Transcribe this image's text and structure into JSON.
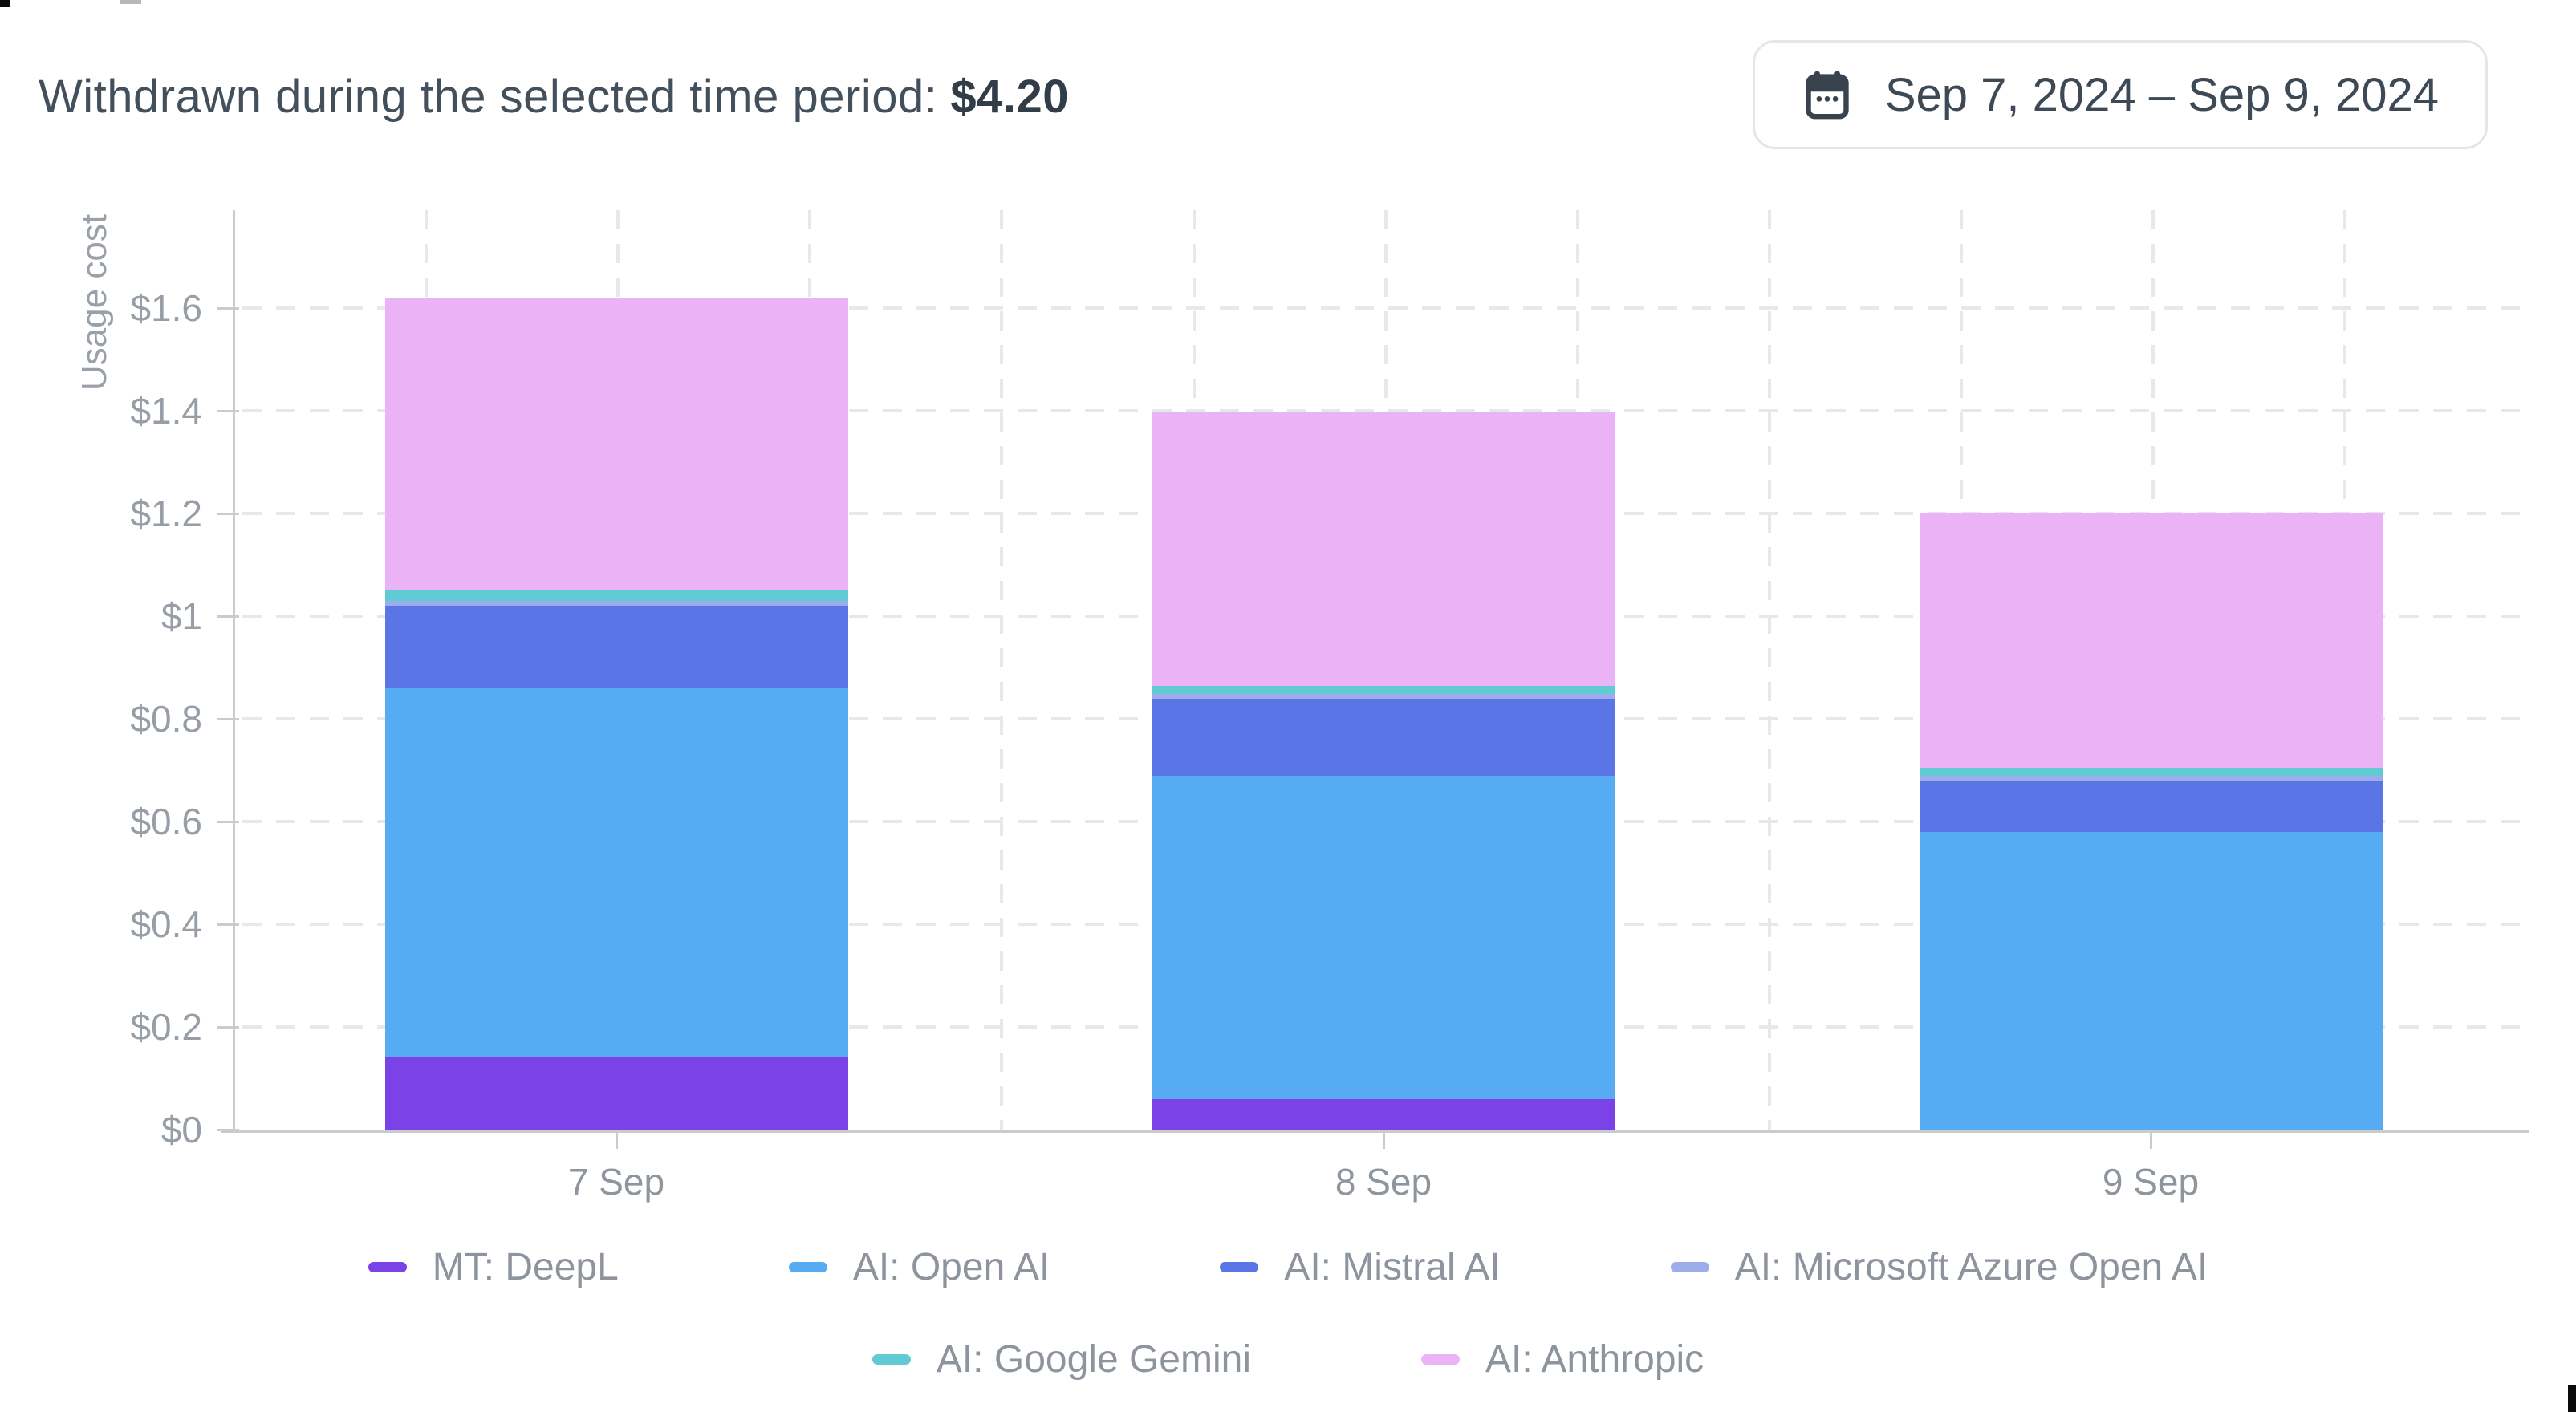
{
  "header": {
    "summary_label": "Withdrawn during the selected time period:",
    "summary_value": "$4.20",
    "date_range": "Sep 7, 2024 – Sep 9, 2024"
  },
  "chart_data": {
    "type": "bar",
    "stacked": true,
    "title": "",
    "xlabel": "",
    "ylabel": "Usage cost",
    "categories": [
      "7 Sep",
      "8 Sep",
      "9 Sep"
    ],
    "series": [
      {
        "name": "MT: DeepL",
        "color": "#7b42e8",
        "values": [
          0.14,
          0.06,
          0
        ]
      },
      {
        "name": "AI: Open AI",
        "color": "#57abf3",
        "values": [
          0.72,
          0.63,
          0.58
        ]
      },
      {
        "name": "AI: Mistral AI",
        "color": "#5a75e6",
        "values": [
          0.16,
          0.15,
          0.1
        ]
      },
      {
        "name": "AI: Microsoft Azure Open AI",
        "color": "#9daceb",
        "values": [
          0.01,
          0.01,
          0.01
        ]
      },
      {
        "name": "AI: Google Gemini",
        "color": "#60cbd2",
        "values": [
          0.02,
          0.015,
          0.015
        ]
      },
      {
        "name": "AI: Anthropic",
        "color": "#e9b3f5",
        "values": [
          0.57,
          0.535,
          0.495
        ]
      }
    ],
    "totals_by_category": [
      1.62,
      1.4,
      1.2
    ],
    "y_ticks": [
      {
        "label": "$0",
        "value": 0
      },
      {
        "label": "$0.2",
        "value": 0.2
      },
      {
        "label": "$0.4",
        "value": 0.4
      },
      {
        "label": "$0.6",
        "value": 0.6
      },
      {
        "label": "$0.8",
        "value": 0.8
      },
      {
        "label": "$1",
        "value": 1.0
      },
      {
        "label": "$1.2",
        "value": 1.2
      },
      {
        "label": "$1.4",
        "value": 1.4
      },
      {
        "label": "$1.6",
        "value": 1.6
      }
    ],
    "ylim": [
      0,
      1.75
    ],
    "grid": "dashed horizontal and vertical",
    "legend_position": "bottom",
    "legend_rows": [
      [
        0,
        1,
        2,
        3
      ],
      [
        4,
        5
      ]
    ]
  }
}
